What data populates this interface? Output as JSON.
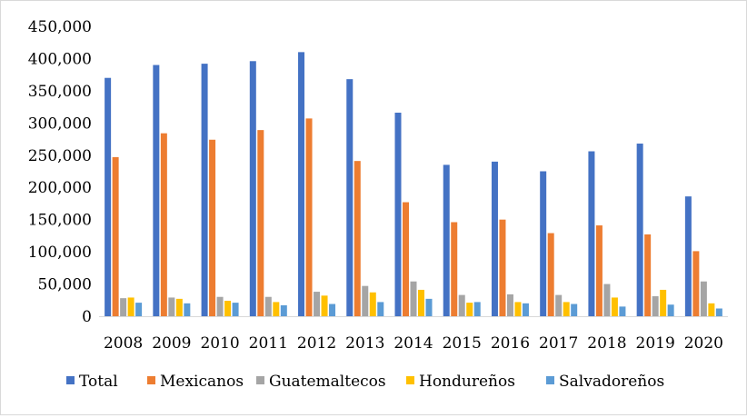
{
  "chart_data": {
    "type": "bar",
    "title": "",
    "xlabel": "",
    "ylabel": "",
    "categories": [
      "2008",
      "2009",
      "2010",
      "2011",
      "2012",
      "2013",
      "2014",
      "2015",
      "2016",
      "2017",
      "2018",
      "2019",
      "2020"
    ],
    "ylim": [
      0,
      450000
    ],
    "yticks": [
      0,
      50000,
      100000,
      150000,
      200000,
      250000,
      300000,
      350000,
      400000,
      450000
    ],
    "ytick_labels": [
      "0",
      "50,000",
      "100,000",
      "150,000",
      "200,000",
      "250,000",
      "300,000",
      "350,000",
      "400,000",
      "450,000"
    ],
    "grid": false,
    "legend_position": "bottom",
    "series": [
      {
        "name": "Total",
        "color": "#4472C4",
        "values": [
          370000,
          390000,
          392000,
          396000,
          410000,
          368000,
          316000,
          235000,
          240000,
          225000,
          256000,
          268000,
          186000
        ]
      },
      {
        "name": "Mexicanos",
        "color": "#ED7D31",
        "values": [
          247000,
          284000,
          274000,
          289000,
          307000,
          241000,
          177000,
          146000,
          150000,
          129000,
          141000,
          127000,
          101000
        ]
      },
      {
        "name": "Guatemaltecos",
        "color": "#A5A5A5",
        "values": [
          28000,
          29000,
          30000,
          30000,
          38000,
          47000,
          54000,
          33000,
          34000,
          33000,
          50000,
          31000,
          54000
        ]
      },
      {
        "name": "Hondureños",
        "color": "#FFC000",
        "values": [
          29000,
          27000,
          24000,
          22000,
          32000,
          37000,
          41000,
          21000,
          22000,
          22000,
          29000,
          41000,
          20000
        ]
      },
      {
        "name": "Salvadoreños",
        "color": "#5B9BD5",
        "values": [
          21000,
          20000,
          21000,
          17000,
          19000,
          22000,
          27000,
          22000,
          20000,
          19000,
          15000,
          18000,
          12000
        ]
      }
    ]
  }
}
